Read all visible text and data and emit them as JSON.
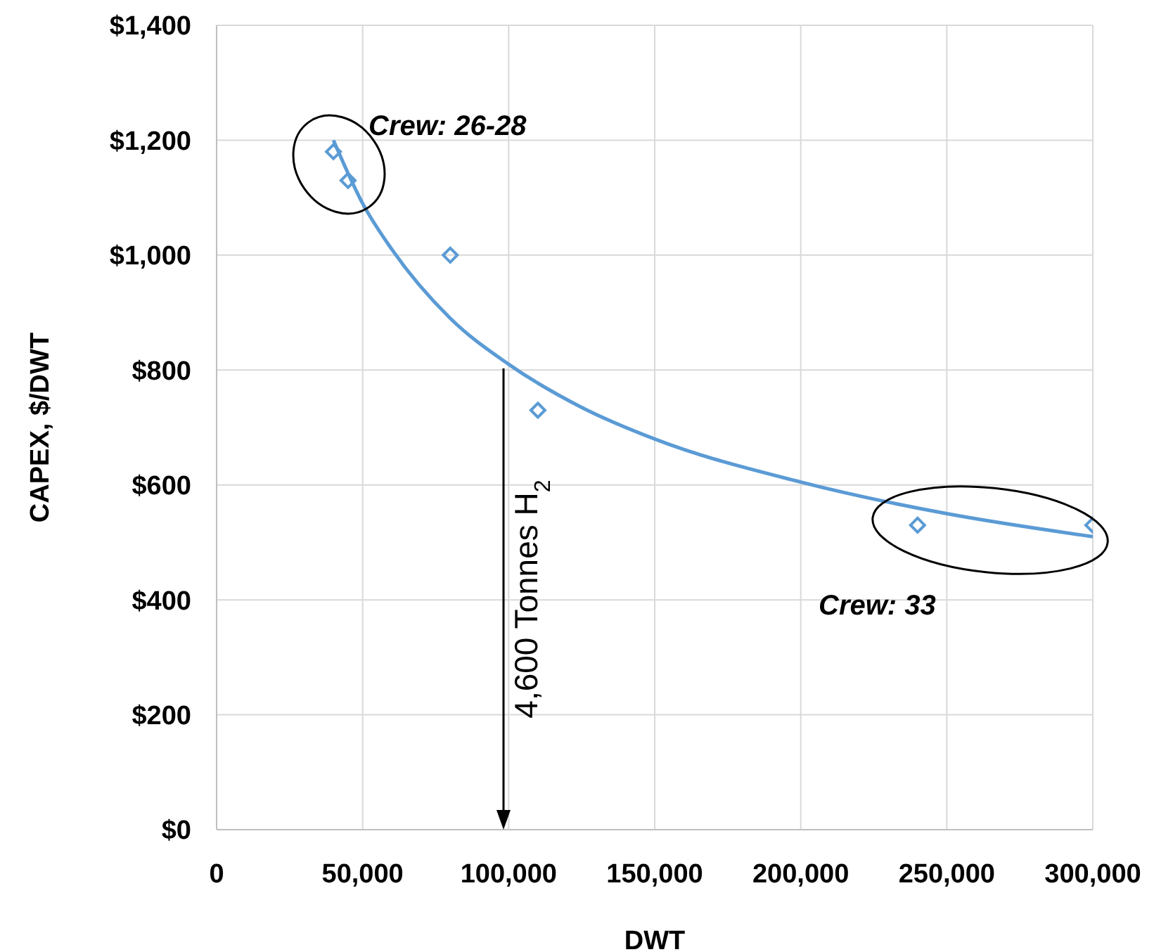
{
  "chart_data": {
    "type": "scatter",
    "xlabel": "DWT",
    "ylabel": "CAPEX, $/DWT",
    "xlim": [
      0,
      300000
    ],
    "ylim": [
      0,
      1400
    ],
    "xticks": [
      0,
      {
        "value": 50000,
        "label": "50,000"
      },
      {
        "value": 100000,
        "label": "100,000"
      },
      {
        "value": 150000,
        "label": "150,000"
      },
      {
        "value": 200000,
        "label": "200,000"
      },
      {
        "value": 250000,
        "label": "250,000"
      },
      {
        "value": 300000,
        "label": "300,000"
      }
    ],
    "yticks": [
      {
        "value": 0,
        "label": "$0"
      },
      {
        "value": 200,
        "label": "$200"
      },
      {
        "value": 400,
        "label": "$400"
      },
      {
        "value": 600,
        "label": "$600"
      },
      {
        "value": 800,
        "label": "$800"
      },
      {
        "value": 1000,
        "label": "$1,000"
      },
      {
        "value": 1200,
        "label": "$1,200"
      },
      {
        "value": 1400,
        "label": "$1,400"
      }
    ],
    "grid": true,
    "series": [
      {
        "color": "#5b9bd5",
        "marker": "diamond",
        "x": [
          40000,
          45000,
          80000,
          110000,
          240000,
          300000
        ],
        "values": [
          1180,
          1130,
          1000,
          730,
          530,
          530
        ]
      },
      {
        "type": "line",
        "color": "#5b9bd5",
        "marker": "none",
        "x": [
          40000,
          50000,
          60000,
          80000,
          100000,
          125000,
          150000,
          200000,
          250000,
          300000
        ],
        "values": [
          1200,
          1090,
          1010,
          890,
          810,
          735,
          680,
          605,
          550,
          510
        ]
      }
    ],
    "annotations": [
      "Crew: 26-28",
      "Crew: 33",
      "4,600 Tonnes H$_{2}$"
    ]
  }
}
